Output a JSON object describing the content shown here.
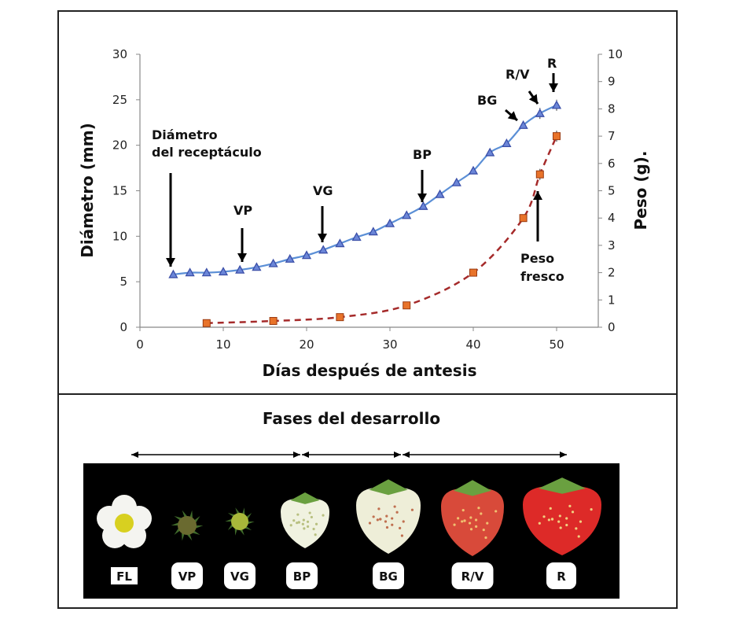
{
  "chart_data": {
    "type": "line",
    "xlabel": "Días después de antesis",
    "ylabel": "Diámetro (mm)",
    "y2label": "Peso (g).",
    "xlim": [
      0,
      55
    ],
    "ylim": [
      0,
      30
    ],
    "y2lim": [
      0,
      10
    ],
    "xticks": [
      0,
      10,
      20,
      30,
      40,
      50
    ],
    "yticks": [
      0,
      5,
      10,
      15,
      20,
      25,
      30
    ],
    "y2ticks": [
      0,
      1,
      2,
      3,
      4,
      5,
      6,
      7,
      8,
      9,
      10
    ],
    "grid": false,
    "series": [
      {
        "name": "Diámetro del receptáculo",
        "axis": "left",
        "color": "#5b8fd6",
        "marker_color": "#3b4fa8",
        "marker": "triangle",
        "line": "solid",
        "x": [
          4,
          6,
          8,
          10,
          12,
          14,
          16,
          18,
          20,
          22,
          24,
          26,
          28,
          30,
          32,
          34,
          36,
          38,
          40,
          42,
          44,
          46,
          48,
          50
        ],
        "y": [
          5.8,
          6.0,
          6.0,
          6.1,
          6.3,
          6.6,
          7.0,
          7.5,
          7.9,
          8.5,
          9.2,
          9.9,
          10.5,
          11.4,
          12.3,
          13.3,
          14.6,
          15.9,
          17.2,
          19.2,
          20.2,
          22.2,
          23.5,
          24.4
        ]
      },
      {
        "name": "Peso fresco",
        "axis": "right",
        "color": "#a52a2a",
        "marker_color": "#e8732a",
        "marker": "square",
        "line": "dashed",
        "x": [
          8,
          16,
          24,
          32,
          40,
          46,
          48,
          50
        ],
        "y": [
          0.15,
          0.23,
          0.37,
          0.8,
          2.0,
          4.0,
          5.6,
          7.0
        ]
      }
    ],
    "annotations": [
      {
        "text": "Diámetro",
        "text2": "del receptáculo",
        "x": 4
      },
      {
        "text": "VP",
        "x": 12
      },
      {
        "text": "VG",
        "x": 22
      },
      {
        "text": "BP",
        "x": 34
      },
      {
        "text": "BG",
        "x": 46
      },
      {
        "text": "R/V",
        "x": 48
      },
      {
        "text": "R",
        "x": 50
      },
      {
        "text": "Peso",
        "text2": "fresco",
        "x": 48
      }
    ]
  },
  "phases": {
    "title": "Fases del desarrollo",
    "labels": [
      "FL",
      "VP",
      "VG",
      "BP",
      "BG",
      "R/V",
      "R"
    ]
  }
}
